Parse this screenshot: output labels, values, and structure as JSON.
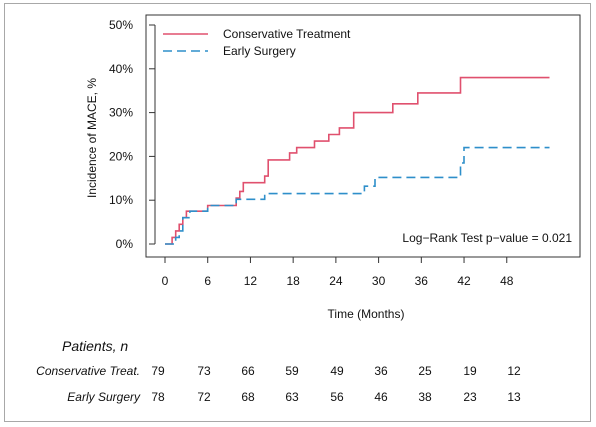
{
  "chart_data": {
    "type": "line",
    "line_shape": "step",
    "title": "",
    "xlabel": "Time (Months)",
    "ylabel": "Incidence of MACE, %",
    "xlim": [
      0,
      54
    ],
    "ylim": [
      0,
      50
    ],
    "x_ticks": [
      0,
      6,
      12,
      18,
      24,
      30,
      36,
      42,
      48
    ],
    "y_ticks": [
      0,
      10,
      20,
      30,
      40,
      50
    ],
    "y_tick_labels": [
      "0%",
      "10%",
      "20%",
      "30%",
      "40%",
      "50%"
    ],
    "legend_position": "top-left",
    "annotation": "Log−Rank Test p−value = 0.021",
    "series": [
      {
        "name": "Conservative Treatment",
        "color": "#e0506e",
        "style": "solid",
        "points": [
          [
            0,
            0
          ],
          [
            1,
            0
          ],
          [
            1,
            1.5
          ],
          [
            1.5,
            1.5
          ],
          [
            1.5,
            3
          ],
          [
            2,
            3
          ],
          [
            2,
            4.5
          ],
          [
            2.5,
            4.5
          ],
          [
            2.5,
            6
          ],
          [
            3,
            6
          ],
          [
            3,
            7.5
          ],
          [
            6,
            7.5
          ],
          [
            6,
            8.8
          ],
          [
            10,
            8.8
          ],
          [
            10,
            10.5
          ],
          [
            10.5,
            10.5
          ],
          [
            10.5,
            12
          ],
          [
            11,
            12
          ],
          [
            11,
            14
          ],
          [
            14,
            14
          ],
          [
            14,
            15.5
          ],
          [
            14.5,
            15.5
          ],
          [
            14.5,
            19.2
          ],
          [
            17.5,
            19.2
          ],
          [
            17.5,
            20.8
          ],
          [
            18.5,
            20.8
          ],
          [
            18.5,
            22
          ],
          [
            21,
            22
          ],
          [
            21,
            23.5
          ],
          [
            23,
            23.5
          ],
          [
            23,
            25
          ],
          [
            24.5,
            25
          ],
          [
            24.5,
            26.5
          ],
          [
            26.5,
            26.5
          ],
          [
            26.5,
            30
          ],
          [
            32,
            30
          ],
          [
            32,
            32
          ],
          [
            35.5,
            32
          ],
          [
            35.5,
            34.5
          ],
          [
            41.5,
            34.5
          ],
          [
            41.5,
            38
          ],
          [
            54,
            38
          ]
        ]
      },
      {
        "name": "Early Surgery",
        "color": "#2e8fca",
        "style": "dashed",
        "points": [
          [
            0,
            0
          ],
          [
            1.5,
            0
          ],
          [
            1.5,
            1.5
          ],
          [
            2,
            1.5
          ],
          [
            2,
            3
          ],
          [
            2.5,
            3
          ],
          [
            2.5,
            6
          ],
          [
            3.5,
            6
          ],
          [
            3.5,
            7.5
          ],
          [
            6,
            7.5
          ],
          [
            6,
            8.8
          ],
          [
            10,
            8.8
          ],
          [
            10,
            10.2
          ],
          [
            14,
            10.2
          ],
          [
            14,
            11.5
          ],
          [
            28,
            11.5
          ],
          [
            28,
            13.2
          ],
          [
            29.5,
            13.2
          ],
          [
            29.5,
            15.2
          ],
          [
            41.5,
            15.2
          ],
          [
            41.5,
            18.5
          ],
          [
            42,
            18.5
          ],
          [
            42,
            22
          ],
          [
            54,
            22
          ]
        ]
      }
    ]
  },
  "risk_table": {
    "heading": "Patients, n",
    "rows": [
      {
        "label": "Conservative Treat.",
        "values": [
          "79",
          "73",
          "66",
          "59",
          "49",
          "36",
          "25",
          "19",
          "12"
        ]
      },
      {
        "label": "Early Surgery",
        "values": [
          "78",
          "72",
          "68",
          "63",
          "56",
          "46",
          "38",
          "23",
          "13"
        ]
      }
    ]
  }
}
